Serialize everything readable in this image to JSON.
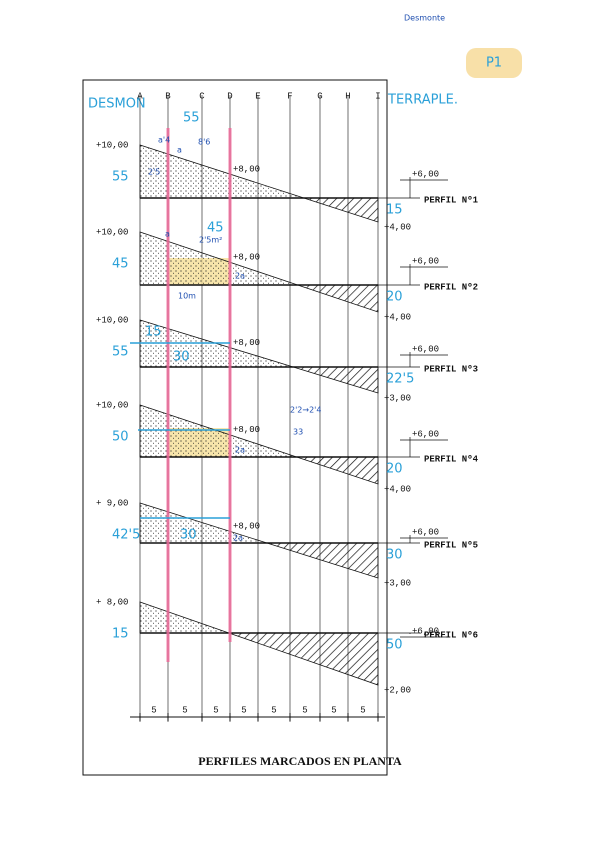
{
  "header": {
    "note": "Desmonte",
    "badge": "P1"
  },
  "side_labels": [
    "DESMON",
    "TERRAPLE."
  ],
  "columns": [
    "A",
    "B",
    "C",
    "D",
    "E",
    "F",
    "G",
    "H",
    "I"
  ],
  "profiles": [
    {
      "left_level": "+10,00",
      "mid_level": "+8,00",
      "perfil_level": "+6,00",
      "name": "PERFIL Nº1",
      "right_level": "+4,00",
      "hand_left": "55",
      "hand_right": "15"
    },
    {
      "left_level": "+10,00",
      "mid_level": "+8,00",
      "perfil_level": "+6,00",
      "name": "PERFIL Nº2",
      "right_level": "+4,00",
      "hand_left": "45",
      "hand_right": "20"
    },
    {
      "left_level": "+10,00",
      "mid_level": "+8,00",
      "perfil_level": "+6,00",
      "name": "PERFIL Nº3",
      "right_level": "+3,00",
      "hand_left": "55",
      "hand_right": "22'5"
    },
    {
      "left_level": "+10,00",
      "mid_level": "+8,00",
      "perfil_level": "+6,00",
      "name": "PERFIL Nº4",
      "right_level": "+4,00",
      "hand_left": "50",
      "hand_right": "20"
    },
    {
      "left_level": "+ 9,00",
      "mid_level": "+8,00",
      "perfil_level": "+6,00",
      "name": "PERFIL Nº5",
      "right_level": "+3,00",
      "hand_left": "42'5",
      "hand_right": "30"
    },
    {
      "left_level": "+ 8,00",
      "mid_level": null,
      "perfil_level": "+6,00",
      "name": "PERFIL Nº6",
      "right_level": "+2,00",
      "hand_left": "15",
      "hand_right": "50"
    }
  ],
  "spacings": [
    "5",
    "5",
    "5",
    "5",
    "5",
    "5",
    "5",
    "5"
  ],
  "annotations": [
    "55",
    "a'4",
    "a",
    "8'6",
    "2'5",
    "45",
    "a",
    "2'5m²",
    "2a",
    "10m",
    "15",
    "30",
    "2'2→2'4",
    "33",
    "2a",
    "30",
    "2a"
  ],
  "title": "PERFILES MARCADOS EN PLANTA"
}
